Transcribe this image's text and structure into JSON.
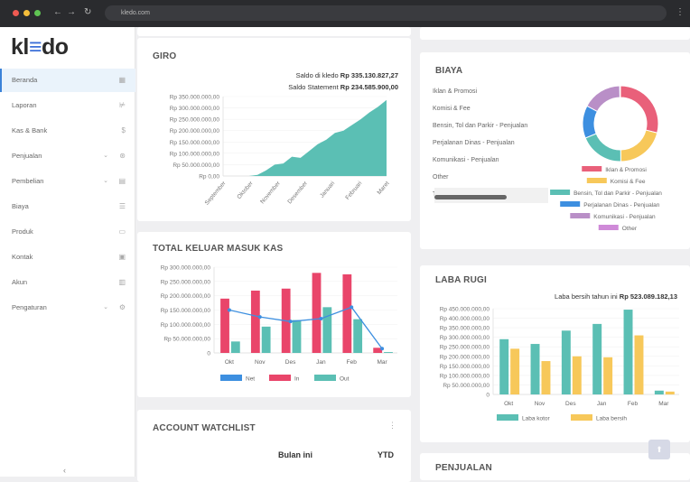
{
  "browser": {
    "url": "kledo.com"
  },
  "sidebar": {
    "logo": "kledo",
    "items": [
      {
        "label": "Beranda",
        "icon": "home-icon",
        "active": true
      },
      {
        "label": "Laporan",
        "icon": "chart-icon"
      },
      {
        "label": "Kas & Bank",
        "icon": "dollar-icon"
      },
      {
        "label": "Penjualan",
        "icon": "tag-icon",
        "expandable": true
      },
      {
        "label": "Pembelian",
        "icon": "bag-icon",
        "expandable": true
      },
      {
        "label": "Biaya",
        "icon": "list-icon"
      },
      {
        "label": "Produk",
        "icon": "box-icon"
      },
      {
        "label": "Kontak",
        "icon": "contact-icon"
      },
      {
        "label": "Akun",
        "icon": "book-icon"
      },
      {
        "label": "Pengaturan",
        "icon": "gear-icon",
        "expandable": true
      }
    ],
    "collapse": "‹"
  },
  "giro": {
    "title": "GIRO",
    "saldo_kledo_label": "Saldo di kledo",
    "saldo_kledo": "Rp 335.130.827,27",
    "saldo_statement_label": "Saldo Statement",
    "saldo_statement": "Rp 234.585.900,00"
  },
  "kas": {
    "title": "TOTAL KELUAR MASUK KAS"
  },
  "watchlist": {
    "title": "ACCOUNT WATCHLIST",
    "col1": "Bulan ini",
    "col2": "YTD"
  },
  "biaya": {
    "title": "BIAYA",
    "list": [
      "Iklan & Promosi",
      "Komisi & Fee",
      "Bensin, Tol dan Parkir - Penjualan",
      "Perjalanan Dinas - Penjualan",
      "Komunikasi - Penjualan",
      "Other",
      "Total"
    ]
  },
  "laba": {
    "title": "LABA RUGI",
    "summary_label": "Laba bersih tahun ini",
    "summary_value": "Rp 523.089.182,13"
  },
  "penjualan": {
    "title": "PENJUALAN"
  },
  "colors": {
    "teal": "#5bbfb4",
    "red": "#e9456a",
    "blue": "#3d8fe0",
    "yellow": "#f7c85a",
    "purple": "#b98fc7",
    "violet": "#cf8ad8"
  },
  "chart_data": [
    {
      "type": "area",
      "id": "giro",
      "x": [
        "September",
        "Oktober",
        "November",
        "Desember",
        "Januari",
        "Februari",
        "Maret"
      ],
      "yticks": [
        "Rp 0,00",
        "Rp 50.000.000,00",
        "Rp 100.000.000,00",
        "Rp 150.000.000,00",
        "Rp 200.000.000,00",
        "Rp 250.000.000,00",
        "Rp 300.000.000,00",
        "Rp 350.000.000,00"
      ],
      "ylim": [
        0,
        350000000
      ],
      "points": [
        0,
        0,
        0,
        0,
        5000000,
        25000000,
        50000000,
        55000000,
        85000000,
        80000000,
        110000000,
        140000000,
        160000000,
        190000000,
        200000000,
        225000000,
        250000000,
        280000000,
        305000000,
        335000000
      ],
      "color": "#5bbfb4"
    },
    {
      "type": "bar",
      "id": "kas",
      "categories": [
        "Okt",
        "Nov",
        "Des",
        "Jan",
        "Feb",
        "Mar"
      ],
      "yticks": [
        "0",
        "Rp 50.000.000,00",
        "Rp 100.000.000,00",
        "Rp 150.000.000,00",
        "Rp 200.000.000,00",
        "Rp 250.000.000,00",
        "Rp 300.000.000,00"
      ],
      "ylim": [
        0,
        300000000
      ],
      "series": [
        {
          "name": "Net",
          "type": "line",
          "values": [
            150000000,
            126000000,
            110000000,
            120000000,
            160000000,
            15000000
          ],
          "color": "#3d8fe0"
        },
        {
          "name": "In",
          "values": [
            190000000,
            218000000,
            225000000,
            280000000,
            275000000,
            18000000
          ],
          "color": "#e9456a"
        },
        {
          "name": "Out",
          "values": [
            40000000,
            92000000,
            115000000,
            160000000,
            118000000,
            3000000
          ],
          "color": "#5bbfb4"
        }
      ]
    },
    {
      "type": "pie",
      "id": "biaya",
      "labels": [
        "Iklan & Promosi",
        "Komisi & Fee",
        "Bensin, Tol dan Parkir - Penjualan",
        "Perjalanan Dinas - Penjualan",
        "Komunikasi - Penjualan",
        "Other"
      ],
      "values": [
        29,
        21,
        19,
        14,
        17,
        0.3
      ],
      "colors": [
        "#e9607a",
        "#f7c85a",
        "#5bbfb4",
        "#3d8fe0",
        "#b98fc7",
        "#cf8ad8"
      ],
      "donut": true
    },
    {
      "type": "bar",
      "id": "laba",
      "categories": [
        "Okt",
        "Nov",
        "Des",
        "Jan",
        "Feb",
        "Mar"
      ],
      "yticks": [
        "0",
        "Rp 50.000.000,00",
        "Rp 100.000.000,00",
        "Rp 150.000.000,00",
        "Rp 200.000.000,00",
        "Rp 250.000.000,00",
        "Rp 300.000.000,00",
        "Rp 350.000.000,00",
        "Rp 400.000.000,00",
        "Rp 450.000.000,00"
      ],
      "ylim": [
        0,
        450000000
      ],
      "series": [
        {
          "name": "Laba kotor",
          "values": [
            290000000,
            265000000,
            335000000,
            370000000,
            445000000,
            20000000
          ],
          "color": "#5bbfb4"
        },
        {
          "name": "Laba bersih",
          "values": [
            240000000,
            175000000,
            200000000,
            195000000,
            310000000,
            15000000
          ],
          "color": "#f7c85a"
        }
      ]
    }
  ]
}
